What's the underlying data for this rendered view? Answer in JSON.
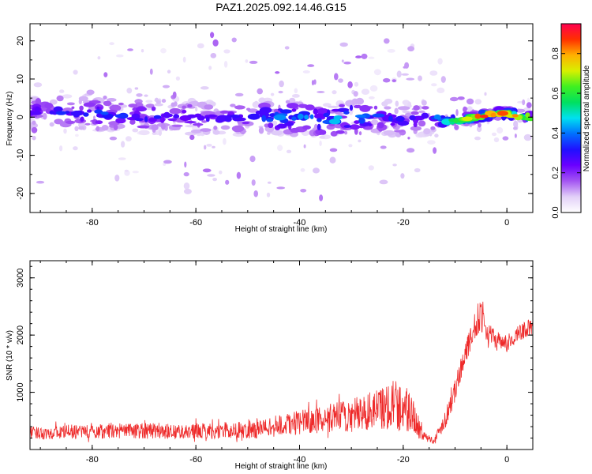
{
  "title": "PAZ1.2025.092.14.46.G15",
  "chart_data": [
    {
      "type": "heatmap",
      "title": "PAZ1.2025.092.14.46.G15",
      "xlabel": "Height of straight line (km)",
      "ylabel": "Frequency (Hz)",
      "xlim": [
        -92,
        5
      ],
      "ylim": [
        -25,
        24.5
      ],
      "xticks": [
        -80,
        -60,
        -40,
        -20,
        0
      ],
      "yticks": [
        -20,
        -10,
        0,
        10,
        20
      ],
      "colorbar": {
        "label": "Normalized spectral amplitude",
        "range": [
          0.0,
          0.95
        ],
        "ticks": [
          "0.0",
          "0.2",
          "0.4",
          "0.6",
          "0.8"
        ],
        "colormap": [
          "#ffffff",
          "#e2d0f8",
          "#a455f2",
          "#6a00ff",
          "#2010ff",
          "#0070ff",
          "#00e0f0",
          "#00e060",
          "#40f020",
          "#d8f000",
          "#ffb000",
          "#ff3000",
          "#ff0050"
        ]
      },
      "ridge": {
        "description_values": "center frequency (Hz) of the main signal band versus height (km)",
        "x": [
          -92,
          -85,
          -80,
          -75,
          -70,
          -65,
          -60,
          -55,
          -50,
          -45,
          -40,
          -35,
          -30,
          -25,
          -20,
          -15,
          -12,
          -10,
          -8,
          -6,
          -4,
          -2,
          0,
          2,
          5
        ],
        "center_hz": [
          1.5,
          1.5,
          1.0,
          0.5,
          0,
          0.5,
          0,
          -0.5,
          0,
          0,
          0,
          -1,
          0,
          0.5,
          -1,
          0,
          -1,
          -1,
          -0.5,
          0,
          0.5,
          1,
          1,
          0.5,
          0
        ],
        "peak_amplitude": [
          0.3,
          0.35,
          0.4,
          0.35,
          0.35,
          0.3,
          0.35,
          0.3,
          0.3,
          0.45,
          0.45,
          0.45,
          0.5,
          0.4,
          0.3,
          0.3,
          0.55,
          0.7,
          0.75,
          0.85,
          0.9,
          0.8,
          0.9,
          0.85,
          0.75
        ]
      }
    },
    {
      "type": "line",
      "xlabel": "Height of straight line (km)",
      "ylabel": "SNR (10 * v/v)",
      "xlim": [
        -92,
        5
      ],
      "ylim": [
        0,
        3300
      ],
      "xticks": [
        -80,
        -60,
        -40,
        -20,
        0
      ],
      "yticks": [
        1000,
        2000,
        3000
      ],
      "color": "#ee2a2a",
      "series": [
        {
          "x": [
            -92,
            -88,
            -84,
            -80,
            -76,
            -72,
            -68,
            -64,
            -60,
            -56,
            -52,
            -48,
            -44,
            -40,
            -36,
            -32,
            -28,
            -26,
            -24,
            -22,
            -20,
            -18,
            -16,
            -14,
            -12,
            -10,
            -8,
            -6,
            -5,
            -4,
            -2,
            0,
            2,
            5
          ],
          "baseline": [
            280,
            280,
            300,
            300,
            320,
            310,
            320,
            300,
            310,
            310,
            320,
            340,
            400,
            450,
            500,
            550,
            600,
            650,
            700,
            750,
            700,
            550,
            220,
            150,
            500,
            1000,
            1700,
            2100,
            2400,
            2050,
            1900,
            1800,
            2000,
            2150
          ],
          "amplitude": [
            220,
            230,
            250,
            260,
            280,
            260,
            300,
            260,
            270,
            280,
            300,
            330,
            380,
            420,
            480,
            540,
            650,
            700,
            800,
            900,
            950,
            700,
            150,
            120,
            350,
            400,
            400,
            450,
            700,
            350,
            300,
            250,
            300,
            300
          ]
        }
      ]
    }
  ]
}
